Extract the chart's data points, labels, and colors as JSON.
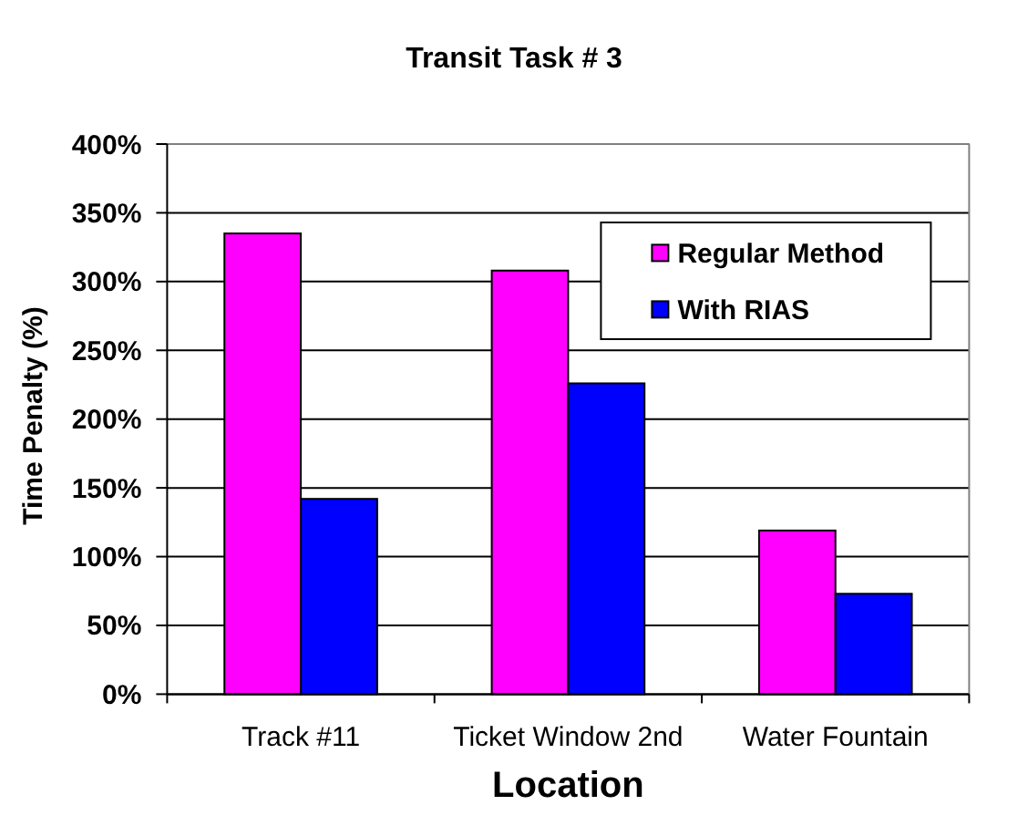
{
  "chart_data": {
    "type": "bar",
    "title": "Transit Task # 3",
    "xlabel": "Location",
    "ylabel": "Time Penalty (%)",
    "categories": [
      "Track #11",
      "Ticket Window 2nd",
      "Water Fountain"
    ],
    "series": [
      {
        "name": "Regular Method",
        "color": "#ff00ff",
        "values": [
          335,
          308,
          119
        ]
      },
      {
        "name": "With RIAS",
        "color": "#0000ff",
        "values": [
          142,
          226,
          73
        ]
      }
    ],
    "ylim": [
      0,
      400
    ],
    "yticks": [
      {
        "value": 0,
        "label": "0%"
      },
      {
        "value": 50,
        "label": "50%"
      },
      {
        "value": 100,
        "label": "100%"
      },
      {
        "value": 150,
        "label": "150%"
      },
      {
        "value": 200,
        "label": "200%"
      },
      {
        "value": 250,
        "label": "250%"
      },
      {
        "value": 300,
        "label": "300%"
      },
      {
        "value": 350,
        "label": "350%"
      },
      {
        "value": 400,
        "label": "400%"
      }
    ],
    "grid": "y",
    "legend": "top right"
  }
}
